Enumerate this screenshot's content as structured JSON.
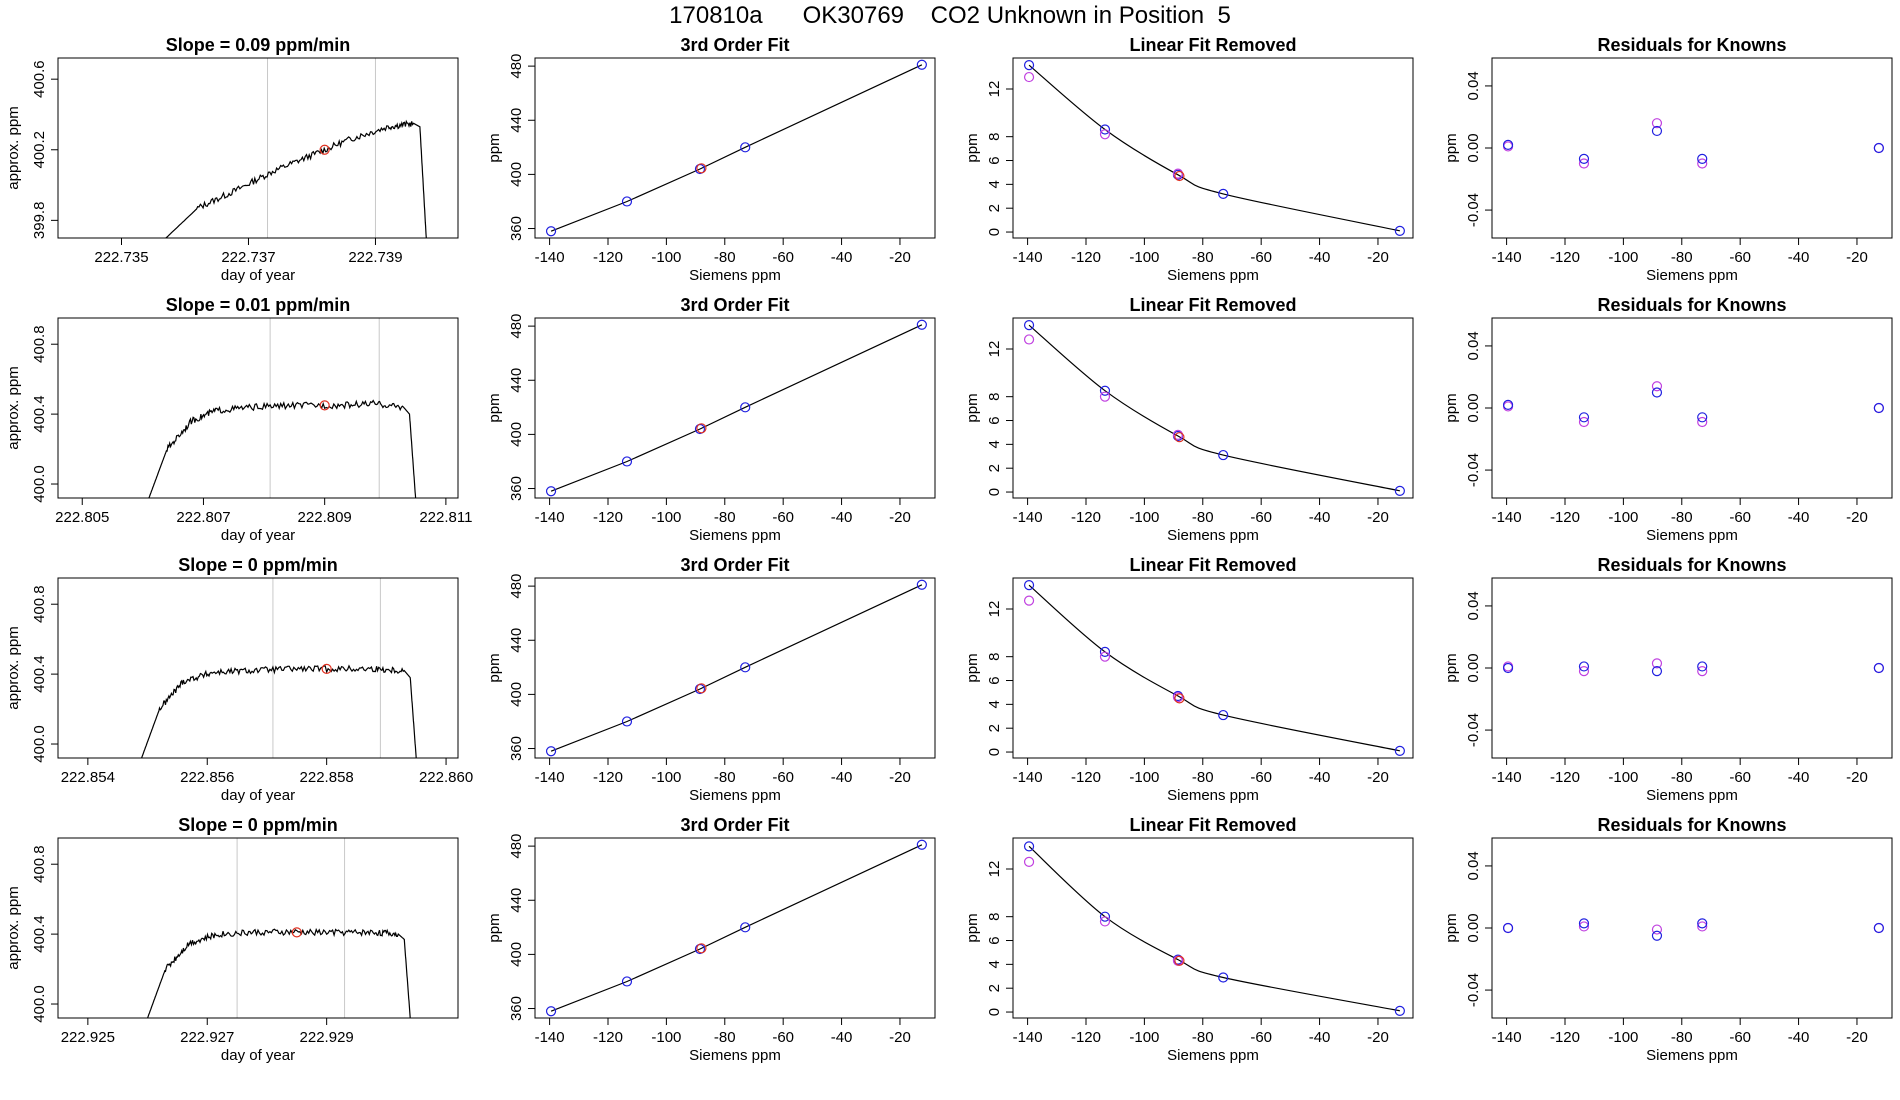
{
  "figure_title": "170810a      OK30769    CO2 Unknown in Position  5",
  "colors": {
    "trace": "#000000",
    "fit_line": "#000000",
    "grid_vline": "#c8c8c8",
    "unknown_point": "#e03020",
    "siemens_point": "#2020e0",
    "known_point": "#c040e0",
    "residual_a": "#c040e0",
    "residual_b": "#2020e0"
  },
  "chart_data": [
    {
      "type": "line",
      "title": "Slope =  0.09  ppm/min",
      "xlabel": "day of year",
      "ylabel": "approx. ppm",
      "xlim": [
        222.734,
        222.7403
      ],
      "ylim": [
        399.7,
        400.72
      ],
      "xticks": [
        "222.735",
        "222.737",
        "222.739"
      ],
      "xtick_values": [
        222.735,
        222.737,
        222.739
      ],
      "yticks": [
        "399.8",
        "400.2",
        "400.6"
      ],
      "ytick_values": [
        399.8,
        400.2,
        400.6
      ],
      "vlines": [
        222.7373,
        222.739
      ],
      "trace": {
        "x": [
          222.7357,
          222.7362,
          222.7368,
          222.7374,
          222.738,
          222.7386,
          222.7392,
          222.7396,
          222.7397,
          222.7398
        ],
        "y": [
          399.7,
          399.87,
          399.97,
          400.08,
          400.17,
          400.26,
          400.33,
          400.35,
          400.33,
          399.7
        ]
      },
      "unknown": {
        "x": [
          222.7382
        ],
        "y": [
          400.2
        ]
      }
    },
    {
      "type": "scatter",
      "title": "3rd Order Fit",
      "xlabel": "Siemens ppm",
      "ylabel": "ppm",
      "xlim": [
        -145,
        -8
      ],
      "ylim": [
        353,
        486
      ],
      "xticks": [
        "-140",
        "-120",
        "-100",
        "-80",
        "-60",
        "-40",
        "-20"
      ],
      "xtick_values": [
        -140,
        -120,
        -100,
        -80,
        -60,
        -40,
        -20
      ],
      "yticks": [
        "360",
        "400",
        "440",
        "480"
      ],
      "ytick_values": [
        360,
        400,
        440,
        480
      ],
      "points": {
        "x": [
          -139.5,
          -113.5,
          -88.5,
          -73,
          -12.5
        ],
        "y": [
          358,
          380,
          404,
          420,
          481
        ]
      },
      "unknown": {
        "x": [
          -88
        ],
        "y": [
          404.5
        ]
      }
    },
    {
      "type": "scatter",
      "title": "Linear Fit Removed",
      "xlabel": "Siemens ppm",
      "ylabel": "ppm",
      "xlim": [
        -145,
        -8
      ],
      "ylim": [
        -0.5,
        14.6
      ],
      "xticks": [
        "-140",
        "-120",
        "-100",
        "-80",
        "-60",
        "-40",
        "-20"
      ],
      "xtick_values": [
        -140,
        -120,
        -100,
        -80,
        -60,
        -40,
        -20
      ],
      "yticks": [
        "0",
        "2",
        "4",
        "6",
        "8",
        "12"
      ],
      "ytick_values": [
        0,
        2,
        4,
        6,
        8,
        12
      ],
      "siemens": {
        "x": [
          -139.5,
          -113.5,
          -88.5,
          -73,
          -12.5
        ],
        "y": [
          14.0,
          8.6,
          4.8,
          3.2,
          0.1
        ]
      },
      "knowns": {
        "x": [
          -139.5,
          -113.5,
          -88.5
        ],
        "y": [
          13.0,
          8.2,
          4.9
        ]
      },
      "unknown": {
        "x": [
          -88
        ],
        "y": [
          4.7
        ]
      }
    },
    {
      "type": "scatter",
      "title": "Residuals for Knowns",
      "xlabel": "Siemens ppm",
      "ylabel": "ppm",
      "xlim": [
        -145,
        -8
      ],
      "ylim": [
        -0.058,
        0.058
      ],
      "xticks": [
        "-140",
        "-120",
        "-100",
        "-80",
        "-60",
        "-40",
        "-20"
      ],
      "xtick_values": [
        -140,
        -120,
        -100,
        -80,
        -60,
        -40,
        -20
      ],
      "yticks": [
        "-0.04",
        "0.00",
        "0.04"
      ],
      "ytick_values": [
        -0.04,
        0.0,
        0.04
      ],
      "series_a": {
        "x": [
          -139.5,
          -113.5,
          -88.5,
          -73,
          -12.5
        ],
        "y": [
          0.001,
          -0.01,
          0.016,
          -0.01,
          0.0
        ]
      },
      "series_b": {
        "x": [
          -139.5,
          -113.5,
          -88.5,
          -73,
          -12.5
        ],
        "y": [
          0.002,
          -0.007,
          0.011,
          -0.007,
          0.0
        ]
      }
    },
    {
      "type": "line",
      "title": "Slope =  0.01  ppm/min",
      "xlabel": "day of year",
      "ylabel": "approx. ppm",
      "xlim": [
        222.8046,
        222.8112
      ],
      "ylim": [
        399.92,
        400.95
      ],
      "xticks": [
        "222.805",
        "222.807",
        "222.809",
        "222.811"
      ],
      "xtick_values": [
        222.805,
        222.807,
        222.809,
        222.811
      ],
      "yticks": [
        "400.0",
        "400.4",
        "400.8"
      ],
      "ytick_values": [
        400.0,
        400.4,
        400.8
      ],
      "vlines": [
        222.8081,
        222.8099
      ],
      "trace": {
        "x": [
          222.8061,
          222.8064,
          222.8068,
          222.8072,
          222.8078,
          222.8085,
          222.8092,
          222.8098,
          222.8103,
          222.8104,
          222.8105
        ],
        "y": [
          399.92,
          400.2,
          400.36,
          400.42,
          400.44,
          400.45,
          400.45,
          400.46,
          400.44,
          400.4,
          399.92
        ]
      },
      "unknown": {
        "x": [
          222.809
        ],
        "y": [
          400.45
        ]
      }
    },
    {
      "type": "scatter",
      "title": "3rd Order Fit",
      "xlabel": "Siemens ppm",
      "ylabel": "ppm",
      "xlim": [
        -145,
        -8
      ],
      "ylim": [
        353,
        486
      ],
      "xticks": [
        "-140",
        "-120",
        "-100",
        "-80",
        "-60",
        "-40",
        "-20"
      ],
      "xtick_values": [
        -140,
        -120,
        -100,
        -80,
        -60,
        -40,
        -20
      ],
      "yticks": [
        "360",
        "400",
        "440",
        "480"
      ],
      "ytick_values": [
        360,
        400,
        440,
        480
      ],
      "points": {
        "x": [
          -139.5,
          -113.5,
          -88.5,
          -73,
          -12.5
        ],
        "y": [
          358,
          380,
          404,
          420,
          481
        ]
      },
      "unknown": {
        "x": [
          -88
        ],
        "y": [
          404.5
        ]
      }
    },
    {
      "type": "scatter",
      "title": "Linear Fit Removed",
      "xlabel": "Siemens ppm",
      "ylabel": "ppm",
      "xlim": [
        -145,
        -8
      ],
      "ylim": [
        -0.5,
        14.6
      ],
      "xticks": [
        "-140",
        "-120",
        "-100",
        "-80",
        "-60",
        "-40",
        "-20"
      ],
      "xtick_values": [
        -140,
        -120,
        -100,
        -80,
        -60,
        -40,
        -20
      ],
      "yticks": [
        "0",
        "2",
        "4",
        "6",
        "8",
        "12"
      ],
      "ytick_values": [
        0,
        2,
        4,
        6,
        8,
        12
      ],
      "siemens": {
        "x": [
          -139.5,
          -113.5,
          -88.5,
          -73,
          -12.5
        ],
        "y": [
          14.0,
          8.5,
          4.7,
          3.1,
          0.1
        ]
      },
      "knowns": {
        "x": [
          -139.5,
          -113.5,
          -88.5
        ],
        "y": [
          12.8,
          8.0,
          4.8
        ]
      },
      "unknown": {
        "x": [
          -88
        ],
        "y": [
          4.6
        ]
      }
    },
    {
      "type": "scatter",
      "title": "Residuals for Knowns",
      "xlabel": "Siemens ppm",
      "ylabel": "ppm",
      "xlim": [
        -145,
        -8
      ],
      "ylim": [
        -0.058,
        0.058
      ],
      "xticks": [
        "-140",
        "-120",
        "-100",
        "-80",
        "-60",
        "-40",
        "-20"
      ],
      "xtick_values": [
        -140,
        -120,
        -100,
        -80,
        -60,
        -40,
        -20
      ],
      "yticks": [
        "-0.04",
        "0.00",
        "0.04"
      ],
      "ytick_values": [
        -0.04,
        0.0,
        0.04
      ],
      "series_a": {
        "x": [
          -139.5,
          -113.5,
          -88.5,
          -73,
          -12.5
        ],
        "y": [
          0.001,
          -0.009,
          0.014,
          -0.009,
          0.0
        ]
      },
      "series_b": {
        "x": [
          -139.5,
          -113.5,
          -88.5,
          -73,
          -12.5
        ],
        "y": [
          0.002,
          -0.006,
          0.01,
          -0.006,
          0.0
        ]
      }
    },
    {
      "type": "line",
      "title": "Slope =  0  ppm/min",
      "xlabel": "day of year",
      "ylabel": "approx. ppm",
      "xlim": [
        222.8535,
        222.8602
      ],
      "ylim": [
        399.92,
        400.95
      ],
      "xticks": [
        "222.854",
        "222.856",
        "222.858",
        "222.860"
      ],
      "xtick_values": [
        222.854,
        222.856,
        222.858,
        222.86
      ],
      "yticks": [
        "400.0",
        "400.4",
        "400.8"
      ],
      "ytick_values": [
        400.0,
        400.4,
        400.8
      ],
      "vlines": [
        222.8571,
        222.8589
      ],
      "trace": {
        "x": [
          222.8549,
          222.8552,
          222.8556,
          222.8561,
          222.8567,
          222.8574,
          222.8581,
          222.8588,
          222.8593,
          222.8594,
          222.8595
        ],
        "y": [
          399.92,
          400.2,
          400.36,
          400.41,
          400.42,
          400.43,
          400.43,
          400.43,
          400.42,
          400.38,
          399.92
        ]
      },
      "unknown": {
        "x": [
          222.858
        ],
        "y": [
          400.43
        ]
      }
    },
    {
      "type": "scatter",
      "title": "3rd Order Fit",
      "xlabel": "Siemens ppm",
      "ylabel": "ppm",
      "xlim": [
        -145,
        -8
      ],
      "ylim": [
        353,
        486
      ],
      "xticks": [
        "-140",
        "-120",
        "-100",
        "-80",
        "-60",
        "-40",
        "-20"
      ],
      "xtick_values": [
        -140,
        -120,
        -100,
        -80,
        -60,
        -40,
        -20
      ],
      "yticks": [
        "360",
        "400",
        "440",
        "480"
      ],
      "ytick_values": [
        360,
        400,
        440,
        480
      ],
      "points": {
        "x": [
          -139.5,
          -113.5,
          -88.5,
          -73,
          -12.5
        ],
        "y": [
          358,
          380,
          404,
          420,
          481
        ]
      },
      "unknown": {
        "x": [
          -88
        ],
        "y": [
          404.5
        ]
      }
    },
    {
      "type": "scatter",
      "title": "Linear Fit Removed",
      "xlabel": "Siemens ppm",
      "ylabel": "ppm",
      "xlim": [
        -145,
        -8
      ],
      "ylim": [
        -0.5,
        14.6
      ],
      "xticks": [
        "-140",
        "-120",
        "-100",
        "-80",
        "-60",
        "-40",
        "-20"
      ],
      "xtick_values": [
        -140,
        -120,
        -100,
        -80,
        -60,
        -40,
        -20
      ],
      "yticks": [
        "0",
        "2",
        "4",
        "6",
        "8",
        "12"
      ],
      "ytick_values": [
        0,
        2,
        4,
        6,
        8,
        12
      ],
      "siemens": {
        "x": [
          -139.5,
          -113.5,
          -88.5,
          -73,
          -12.5
        ],
        "y": [
          14.0,
          8.4,
          4.7,
          3.1,
          0.1
        ]
      },
      "knowns": {
        "x": [
          -139.5,
          -113.5,
          -88.5
        ],
        "y": [
          12.7,
          8.0,
          4.6
        ]
      },
      "unknown": {
        "x": [
          -88
        ],
        "y": [
          4.5
        ]
      }
    },
    {
      "type": "scatter",
      "title": "Residuals for Knowns",
      "xlabel": "Siemens ppm",
      "ylabel": "ppm",
      "xlim": [
        -145,
        -8
      ],
      "ylim": [
        -0.058,
        0.058
      ],
      "xticks": [
        "-140",
        "-120",
        "-100",
        "-80",
        "-60",
        "-40",
        "-20"
      ],
      "xtick_values": [
        -140,
        -120,
        -100,
        -80,
        -60,
        -40,
        -20
      ],
      "yticks": [
        "-0.04",
        "0.00",
        "0.04"
      ],
      "ytick_values": [
        -0.04,
        0.0,
        0.04
      ],
      "series_a": {
        "x": [
          -139.5,
          -113.5,
          -88.5,
          -73,
          -12.5
        ],
        "y": [
          0.001,
          -0.002,
          0.003,
          -0.002,
          0.0
        ]
      },
      "series_b": {
        "x": [
          -139.5,
          -113.5,
          -88.5,
          -73,
          -12.5
        ],
        "y": [
          0.0,
          0.001,
          -0.002,
          0.001,
          0.0
        ]
      }
    },
    {
      "type": "line",
      "title": "Slope =  0  ppm/min",
      "xlabel": "day of year",
      "ylabel": "approx. ppm",
      "xlim": [
        222.9245,
        222.9312
      ],
      "ylim": [
        399.92,
        400.95
      ],
      "xticks": [
        "222.925",
        "222.927",
        "222.929"
      ],
      "xtick_values": [
        222.925,
        222.927,
        222.929
      ],
      "yticks": [
        "400.0",
        "400.4",
        "400.8"
      ],
      "ytick_values": [
        400.0,
        400.4,
        400.8
      ],
      "vlines": [
        222.9275,
        222.9293
      ],
      "trace": {
        "x": [
          222.926,
          222.9263,
          222.9267,
          222.9272,
          222.9278,
          222.9285,
          222.9292,
          222.9298,
          222.9302,
          222.9303,
          222.9304
        ],
        "y": [
          399.92,
          400.2,
          400.35,
          400.4,
          400.41,
          400.41,
          400.41,
          400.41,
          400.4,
          400.37,
          399.92
        ]
      },
      "unknown": {
        "x": [
          222.9285
        ],
        "y": [
          400.41
        ]
      }
    },
    {
      "type": "scatter",
      "title": "3rd Order Fit",
      "xlabel": "Siemens ppm",
      "ylabel": "ppm",
      "xlim": [
        -145,
        -8
      ],
      "ylim": [
        353,
        486
      ],
      "xticks": [
        "-140",
        "-120",
        "-100",
        "-80",
        "-60",
        "-40",
        "-20"
      ],
      "xtick_values": [
        -140,
        -120,
        -100,
        -80,
        -60,
        -40,
        -20
      ],
      "yticks": [
        "360",
        "400",
        "440",
        "480"
      ],
      "ytick_values": [
        360,
        400,
        440,
        480
      ],
      "points": {
        "x": [
          -139.5,
          -113.5,
          -88.5,
          -73,
          -12.5
        ],
        "y": [
          358,
          380,
          404,
          420,
          481
        ]
      },
      "unknown": {
        "x": [
          -88
        ],
        "y": [
          404.5
        ]
      }
    },
    {
      "type": "scatter",
      "title": "Linear Fit Removed",
      "xlabel": "Siemens ppm",
      "ylabel": "ppm",
      "xlim": [
        -145,
        -8
      ],
      "ylim": [
        -0.5,
        14.6
      ],
      "xticks": [
        "-140",
        "-120",
        "-100",
        "-80",
        "-60",
        "-40",
        "-20"
      ],
      "xtick_values": [
        -140,
        -120,
        -100,
        -80,
        -60,
        -40,
        -20
      ],
      "yticks": [
        "0",
        "2",
        "4",
        "6",
        "8",
        "12"
      ],
      "ytick_values": [
        0,
        2,
        4,
        6,
        8,
        12
      ],
      "siemens": {
        "x": [
          -139.5,
          -113.5,
          -88.5,
          -73,
          -12.5
        ],
        "y": [
          13.9,
          8.0,
          4.4,
          2.9,
          0.1
        ]
      },
      "knowns": {
        "x": [
          -139.5,
          -113.5,
          -88.5
        ],
        "y": [
          12.6,
          7.6,
          4.3
        ]
      },
      "unknown": {
        "x": [
          -88
        ],
        "y": [
          4.3
        ]
      }
    },
    {
      "type": "scatter",
      "title": "Residuals for Knowns",
      "xlabel": "Siemens ppm",
      "ylabel": "ppm",
      "xlim": [
        -145,
        -8
      ],
      "ylim": [
        -0.058,
        0.058
      ],
      "xticks": [
        "-140",
        "-120",
        "-100",
        "-80",
        "-60",
        "-40",
        "-20"
      ],
      "xtick_values": [
        -140,
        -120,
        -100,
        -80,
        -60,
        -40,
        -20
      ],
      "yticks": [
        "-0.04",
        "0.00",
        "0.04"
      ],
      "ytick_values": [
        -0.04,
        0.0,
        0.04
      ],
      "series_a": {
        "x": [
          -139.5,
          -113.5,
          -88.5,
          -73,
          -12.5
        ],
        "y": [
          0.0,
          0.001,
          -0.001,
          0.001,
          0.0
        ]
      },
      "series_b": {
        "x": [
          -139.5,
          -113.5,
          -88.5,
          -73,
          -12.5
        ],
        "y": [
          0.0,
          0.003,
          -0.005,
          0.003,
          0.0
        ]
      }
    }
  ]
}
